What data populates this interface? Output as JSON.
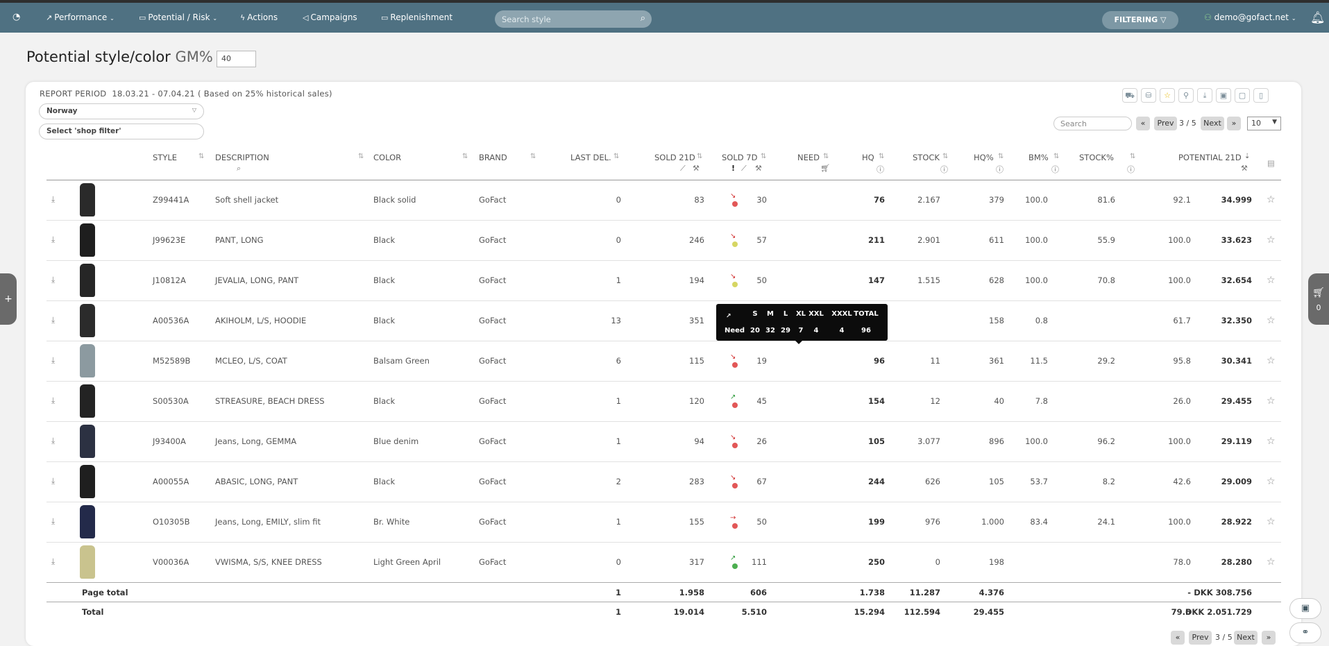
{
  "nav": {
    "home_icon": "gauge-icon",
    "items": [
      {
        "label": "Performance",
        "icon": "chart-icon",
        "dropdown": true
      },
      {
        "label": "Potential / Risk",
        "icon": "money-icon",
        "dropdown": true
      },
      {
        "label": "Actions",
        "icon": "bolt-icon",
        "dropdown": false
      },
      {
        "label": "Campaigns",
        "icon": "megaphone-icon",
        "dropdown": false
      },
      {
        "label": "Replenishment",
        "icon": "box-icon",
        "dropdown": false
      }
    ],
    "search_placeholder": "Search style",
    "filtering_label": "FILTERING",
    "user": "demo@gofact.net"
  },
  "page": {
    "title": "Potential style/color",
    "gm_label": "GM%",
    "gt": ">",
    "gm_value": "40"
  },
  "report": {
    "label": "REPORT PERIOD",
    "period": "18.03.21 - 07.04.21",
    "basis": "( Based on 25% historical sales)",
    "country": "Norway",
    "shop_filter": "Select 'shop filter'"
  },
  "pagination": {
    "search_placeholder": "Search",
    "first": "«",
    "prev": "Prev",
    "page": "3",
    "sep": "/",
    "pages": "5",
    "next": "Next",
    "last": "»",
    "page_size": "10"
  },
  "columns": {
    "style": "STYLE",
    "description": "DESCRIPTION",
    "color": "COLOR",
    "brand": "BRAND",
    "last_del": "LAST DEL.",
    "sold21": "SOLD 21D",
    "sold7": "SOLD 7D",
    "need": "NEED",
    "hq": "HQ",
    "stock": "STOCK",
    "hq_pct": "HQ%",
    "bm_pct": "BM%",
    "stock_pct": "STOCK%",
    "potential": "POTENTIAL 21D"
  },
  "rows": [
    {
      "style": "Z99441A",
      "description": "Soft shell jacket",
      "color": "Black solid",
      "brand": "GoFact",
      "last_del": "0",
      "sold21": "83",
      "trend": "down",
      "dot": "#e25757",
      "sold7": "30",
      "need": "76",
      "hq": "2.167",
      "stock": "379",
      "hq_pct": "100.0",
      "bm_pct": "81.6",
      "stock_pct": "92.1",
      "potential": "34.999",
      "img": "#2a2a2a"
    },
    {
      "style": "J99623E",
      "description": "PANT, LONG",
      "color": "Black",
      "brand": "GoFact",
      "last_del": "0",
      "sold21": "246",
      "trend": "down",
      "dot": "#d6d663",
      "sold7": "57",
      "need": "211",
      "hq": "2.901",
      "stock": "611",
      "hq_pct": "100.0",
      "bm_pct": "55.9",
      "stock_pct": "100.0",
      "potential": "33.623",
      "img": "#1e1e1e"
    },
    {
      "style": "J10812A",
      "description": "JEVALIA, LONG, PANT",
      "color": "Black",
      "brand": "GoFact",
      "last_del": "1",
      "sold21": "194",
      "trend": "down",
      "dot": "#d6d663",
      "sold7": "50",
      "need": "147",
      "hq": "1.515",
      "stock": "628",
      "hq_pct": "100.0",
      "bm_pct": "70.8",
      "stock_pct": "100.0",
      "potential": "32.654",
      "img": "#262626"
    },
    {
      "style": "A00536A",
      "description": "AKIHOLM, L/S, HOODIE",
      "color": "Black",
      "brand": "GoFact",
      "last_del": "13",
      "sold21": "351",
      "trend": "",
      "dot": "",
      "sold7": "",
      "need": "",
      "hq": "",
      "stock": "158",
      "hq_pct": "0.8",
      "bm_pct": "",
      "stock_pct": "61.7",
      "potential": "32.350",
      "img": "#2b2b2b"
    },
    {
      "style": "M52589B",
      "description": "MCLEO, L/S, COAT",
      "color": "Balsam Green",
      "brand": "GoFact",
      "last_del": "6",
      "sold21": "115",
      "trend": "down",
      "dot": "#e25757",
      "sold7": "19",
      "need": "96",
      "hq": "11",
      "stock": "361",
      "hq_pct": "11.5",
      "bm_pct": "29.2",
      "stock_pct": "95.8",
      "potential": "30.341",
      "img": "#8c9aa0"
    },
    {
      "style": "S00530A",
      "description": "STREASURE, BEACH DRESS",
      "color": "Black",
      "brand": "GoFact",
      "last_del": "1",
      "sold21": "120",
      "trend": "up",
      "dot": "#e25757",
      "sold7": "45",
      "need": "154",
      "hq": "12",
      "stock": "40",
      "hq_pct": "7.8",
      "bm_pct": "",
      "stock_pct": "26.0",
      "potential": "29.455",
      "img": "#232323"
    },
    {
      "style": "J93400A",
      "description": "Jeans, Long, GEMMA",
      "color": "Blue denim",
      "brand": "GoFact",
      "last_del": "1",
      "sold21": "94",
      "trend": "down",
      "dot": "#e25757",
      "sold7": "26",
      "need": "105",
      "hq": "3.077",
      "stock": "896",
      "hq_pct": "100.0",
      "bm_pct": "96.2",
      "stock_pct": "100.0",
      "potential": "29.119",
      "img": "#2c3142"
    },
    {
      "style": "A00055A",
      "description": "ABASIC, LONG, PANT",
      "color": "Black",
      "brand": "GoFact",
      "last_del": "2",
      "sold21": "283",
      "trend": "down",
      "dot": "#e25757",
      "sold7": "67",
      "need": "244",
      "hq": "626",
      "stock": "105",
      "hq_pct": "53.7",
      "bm_pct": "8.2",
      "stock_pct": "42.6",
      "potential": "29.009",
      "img": "#1f1f1f"
    },
    {
      "style": "O10305B",
      "description": "Jeans, Long, EMILY, slim fit",
      "color": "Br. White",
      "brand": "GoFact",
      "last_del": "1",
      "sold21": "155",
      "trend": "flat",
      "dot": "#e25757",
      "sold7": "50",
      "need": "199",
      "hq": "976",
      "stock": "1.000",
      "hq_pct": "83.4",
      "bm_pct": "24.1",
      "stock_pct": "100.0",
      "potential": "28.922",
      "img": "#232a4a"
    },
    {
      "style": "V00036A",
      "description": "VWISMA, S/S, KNEE DRESS",
      "color": "Light Green April",
      "brand": "GoFact",
      "last_del": "0",
      "sold21": "317",
      "trend": "up",
      "dot": "#4caf50",
      "sold7": "111",
      "need": "250",
      "hq": "0",
      "stock": "198",
      "hq_pct": "",
      "bm_pct": "",
      "stock_pct": "78.0",
      "potential": "28.280",
      "img": "#c9c38e"
    }
  ],
  "page_total": {
    "label": "Page total",
    "last_del": "1",
    "sold21": "1.958",
    "sold7": "606",
    "need": "1.738",
    "hq": "11.287",
    "stock": "4.376",
    "stock_pct": "-",
    "potential": "DKK 308.756"
  },
  "total": {
    "label": "Total",
    "last_del": "1",
    "sold21": "19.014",
    "sold7": "5.510",
    "need": "15.294",
    "hq": "112.594",
    "stock": "29.455",
    "stock_pct": "79.6",
    "potential": "DKK 2.051.729"
  },
  "tooltip": {
    "sizes": [
      "S",
      "M",
      "L",
      "XL",
      "XXL",
      "XXXL",
      "TOTAL"
    ],
    "row_label": "Need",
    "values": [
      "20",
      "32",
      "29",
      "7",
      "4",
      "4",
      "96"
    ]
  },
  "cart": {
    "count": "0"
  },
  "colors": {
    "topbar": "#4f7182",
    "accent_star": "#e6b800",
    "trend_red": "#e25757",
    "trend_yellow": "#d6d663",
    "trend_green": "#4caf50"
  }
}
